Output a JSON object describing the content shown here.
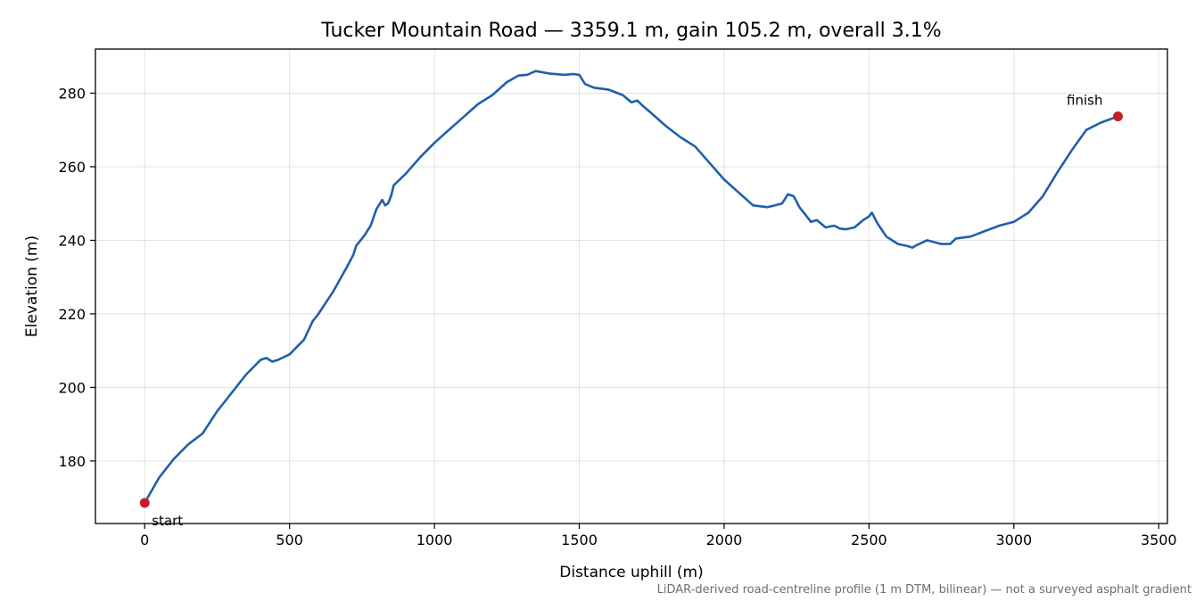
{
  "chart_data": {
    "type": "line",
    "title": "Tucker Mountain Road — 3359.1 m, gain 105.2 m, overall 3.1%",
    "xlabel": "Distance uphill (m)",
    "ylabel": "Elevation (m)",
    "xlim": [
      -170,
      3530
    ],
    "ylim": [
      163,
      292
    ],
    "xticks": [
      0,
      500,
      1000,
      1500,
      2000,
      2500,
      3000,
      3500
    ],
    "yticks": [
      180,
      200,
      220,
      240,
      260,
      280
    ],
    "grid": true,
    "line_color": "#1f5fad",
    "marker_color": "#c41e2a",
    "series": [
      {
        "x": [
          0,
          50,
          100,
          150,
          200,
          250,
          300,
          350,
          400,
          420,
          440,
          460,
          500,
          550,
          580,
          600,
          650,
          700,
          720,
          730,
          750,
          760,
          780,
          800,
          820,
          830,
          840,
          850,
          860,
          900,
          950,
          1000,
          1050,
          1100,
          1150,
          1200,
          1250,
          1290,
          1320,
          1350,
          1400,
          1450,
          1480,
          1500,
          1520,
          1550,
          1600,
          1650,
          1680,
          1700,
          1720,
          1750,
          1800,
          1850,
          1900,
          1950,
          2000,
          2050,
          2100,
          2150,
          2200,
          2220,
          2240,
          2260,
          2300,
          2320,
          2350,
          2380,
          2400,
          2420,
          2450,
          2480,
          2500,
          2510,
          2530,
          2560,
          2600,
          2630,
          2650,
          2660,
          2700,
          2750,
          2780,
          2800,
          2850,
          2900,
          2950,
          3000,
          3050,
          3100,
          3150,
          3200,
          3250,
          3300,
          3359.1
        ],
        "y": [
          168.6,
          175.5,
          180.5,
          184.5,
          187.5,
          193.5,
          198.5,
          203.5,
          207.5,
          208,
          207,
          207.5,
          209,
          213,
          218,
          220,
          226,
          233,
          236,
          238.5,
          240.5,
          241.5,
          244,
          248.5,
          251,
          249.5,
          250,
          252,
          255,
          258,
          262.5,
          266.5,
          270,
          273.5,
          277,
          279.5,
          283,
          284.8,
          285,
          286,
          285.3,
          285,
          285.2,
          285,
          282.5,
          281.5,
          281,
          279.5,
          277.5,
          278,
          276.5,
          274.5,
          271,
          268,
          265.5,
          261,
          256.5,
          253,
          249.5,
          249,
          250,
          252.5,
          252,
          249,
          245,
          245.5,
          243.5,
          244,
          243.2,
          243,
          243.5,
          245.5,
          246.5,
          247.5,
          244.5,
          241,
          239,
          238.5,
          238,
          238.5,
          240,
          239,
          239,
          240.5,
          241,
          242.5,
          244,
          245,
          247.5,
          252,
          258.5,
          264.5,
          270,
          272,
          273.7
        ]
      }
    ],
    "annotations": [
      {
        "text": "start",
        "x": 0,
        "y": 168.6
      },
      {
        "text": "finish",
        "x": 3359.1,
        "y": 273.7
      }
    ],
    "footnote": "LiDAR-derived road-centreline profile (1 m DTM, bilinear) — not a surveyed asphalt gradient"
  }
}
